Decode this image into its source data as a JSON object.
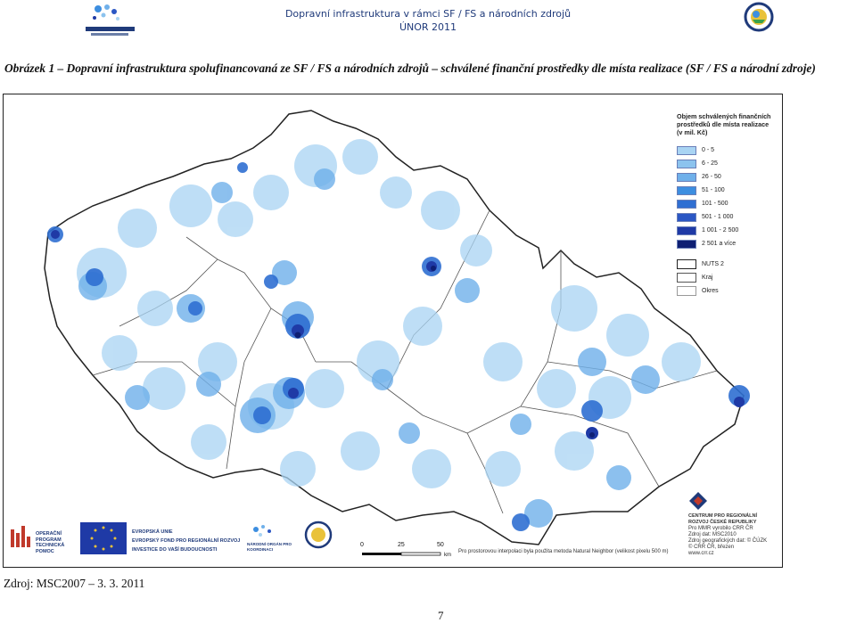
{
  "header": {
    "title_line1": "Dopravní infrastruktura v rámci SF / FS a národních zdrojů",
    "title_line2": "ÚNOR 2011"
  },
  "caption": "Obrázek 1 – Dopravní infrastruktura spolufinancovaná ze SF / FS a národních zdrojů – schválené finanční prostředky dle místa realizace (SF / FS a národní zdroje)",
  "legend": {
    "title": "Objem schválených finančních prostředků dle místa realizace (v mil. Kč)",
    "classes": [
      {
        "label": "0 - 5",
        "color": "#a9d4f3"
      },
      {
        "label": "6 - 25",
        "color": "#8cc3ee"
      },
      {
        "label": "26 - 50",
        "color": "#6fb0ea"
      },
      {
        "label": "51 - 100",
        "color": "#3d8ee0"
      },
      {
        "label": "101 - 500",
        "color": "#2f6fd2"
      },
      {
        "label": "501 - 1 000",
        "color": "#2b57c4"
      },
      {
        "label": "1 001 - 2 500",
        "color": "#1f3aa6"
      },
      {
        "label": "2 501 a více",
        "color": "#0e1f73"
      }
    ],
    "boundaries": [
      "NUTS 2",
      "Kraj",
      "Okres"
    ]
  },
  "scale": {
    "ticks": [
      "0",
      "25",
      "50"
    ],
    "unit": "km"
  },
  "method_note": "Pro prostorovou interpolaci byla použita metoda Natural Neighbor (velikost pixelu 500 m)",
  "producer": {
    "name": "CENTRUM PRO REGIONÁLNÍ ROZVOJ ČESKÉ REPUBLIKY",
    "lines": [
      "Pro MMR vyrobilo CRR ČR",
      "Zdroj dat: MSC2010",
      "Zdroj geografických dat: © ČÚZK",
      "© CRR ČR, březen",
      "www.crr.cz"
    ]
  },
  "bottom_logos": {
    "optp": "OPERAČNÍ PROGRAM TECHNICKÁ POMOC",
    "eu": [
      "EVROPSKÁ UNIE",
      "EVROPSKÝ FOND PRO REGIONÁLNÍ ROZVOJ",
      "INVESTICE DO VAŠÍ BUDOUCNOSTI"
    ],
    "no": "NÁRODNÍ ORGÁN PRO KOORDINACI"
  },
  "source": "Zdroj: MSC2007 – 3. 3. 2011",
  "page_number": "7",
  "colors": {
    "accent": "#1f3a7a",
    "dark": "#0e1f73",
    "light": "#a9d4f3"
  }
}
